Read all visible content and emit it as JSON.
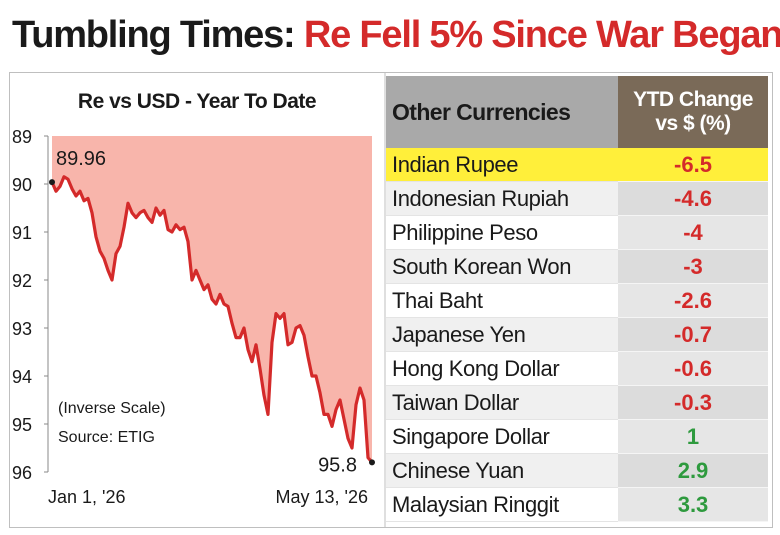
{
  "headline": {
    "part1": "Tumbling Times: ",
    "part2": "Re Fell 5% Since War Began"
  },
  "chart_data": {
    "type": "area",
    "title": "Re vs USD - Year To Date",
    "scale": "inverse",
    "ylim": [
      89,
      96
    ],
    "yticks": [
      "89",
      "90",
      "91",
      "92",
      "93",
      "94",
      "95",
      "96"
    ],
    "x_range_labels": [
      "Jan 1, '26",
      "May 13, '26"
    ],
    "start_value": 89.96,
    "end_value": 95.8,
    "start_label": "89.96",
    "end_label": "95.8",
    "annotations": [
      "(Inverse Scale)",
      "Source: ETIG"
    ],
    "series": [
      {
        "values": [
          89.96,
          90.15,
          90.05,
          89.85,
          89.9,
          90.1,
          90.25,
          90.15,
          90.35,
          90.3,
          90.6,
          91.1,
          91.4,
          91.55,
          91.8,
          92.0,
          91.45,
          91.3,
          90.9,
          90.4,
          90.6,
          90.7,
          90.6,
          90.55,
          90.7,
          90.8,
          90.5,
          90.65,
          90.55,
          90.95,
          91.0,
          90.85,
          90.95,
          90.9,
          91.2,
          92.0,
          91.8,
          92.0,
          92.2,
          92.1,
          92.4,
          92.5,
          92.3,
          92.5,
          92.55,
          92.9,
          93.2,
          93.2,
          93.0,
          93.45,
          93.7,
          93.35,
          93.85,
          94.4,
          94.8,
          93.3,
          92.7,
          92.8,
          92.7,
          93.35,
          93.3,
          93.0,
          92.95,
          93.15,
          93.6,
          94.0,
          94.0,
          94.35,
          94.8,
          94.8,
          95.05,
          94.7,
          94.5,
          94.9,
          95.3,
          95.5,
          94.6,
          94.25,
          94.5,
          95.7,
          95.8
        ]
      }
    ]
  },
  "table": {
    "header_left": "Other Currencies",
    "header_right_line1": "YTD Change",
    "header_right_line2": "vs $ (%)",
    "rows": [
      {
        "name": "Indian Rupee",
        "value": "-6.5"
      },
      {
        "name": "Indonesian Rupiah",
        "value": "-4.6"
      },
      {
        "name": "Philippine Peso",
        "value": "-4"
      },
      {
        "name": "South Korean Won",
        "value": "-3"
      },
      {
        "name": "Thai Baht",
        "value": "-2.6"
      },
      {
        "name": "Japanese Yen",
        "value": "-0.7"
      },
      {
        "name": "Hong Kong Dollar",
        "value": "-0.6"
      },
      {
        "name": "Taiwan Dollar",
        "value": "-0.3"
      },
      {
        "name": "Singapore Dollar",
        "value": "1"
      },
      {
        "name": "Chinese Yuan",
        "value": "2.9"
      },
      {
        "name": "Malaysian Ringgit",
        "value": "3.3"
      }
    ]
  },
  "colors": {
    "line": "#d42a2a",
    "fill": "#f7a89c",
    "highlight": "#ffef3a",
    "negative": "#d42a2a",
    "positive": "#2e9a3e",
    "header_right_bg": "#7a6a58",
    "header_left_bg": "#a9a9a9"
  }
}
